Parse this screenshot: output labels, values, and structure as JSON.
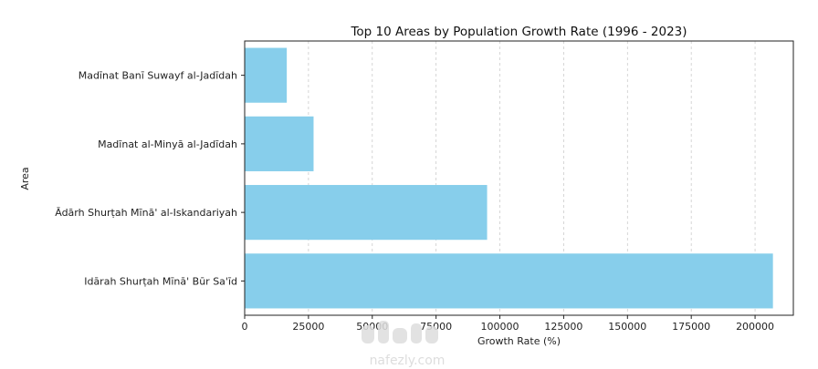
{
  "chart_data": {
    "type": "bar",
    "orientation": "horizontal",
    "title": "Top 10 Areas by Population Growth Rate (1996 - 2023)",
    "xlabel": "Growth Rate (%)",
    "ylabel": "Area",
    "categories": [
      "Idārah Shurṭah Mīnā' Būr Sa'īd",
      "Ādārh Shurṭah Mīnā' al-Iskandariyah",
      "Madīnat al-Minyā al-Jadīdah",
      "Madīnat Banī Suwayf al-Jadīdah"
    ],
    "values": [
      207000,
      95000,
      27000,
      16500
    ],
    "xlim": [
      0,
      215000
    ],
    "xticks": [
      0,
      25000,
      50000,
      75000,
      100000,
      125000,
      150000,
      175000,
      200000
    ],
    "xtick_labels": [
      "0",
      "25000",
      "50000",
      "75000",
      "100000",
      "125000",
      "150000",
      "175000",
      "200000"
    ],
    "grid": "x-dashed",
    "bar_color": "#87ceeb"
  },
  "watermark": {
    "text": "nafezly.com"
  }
}
